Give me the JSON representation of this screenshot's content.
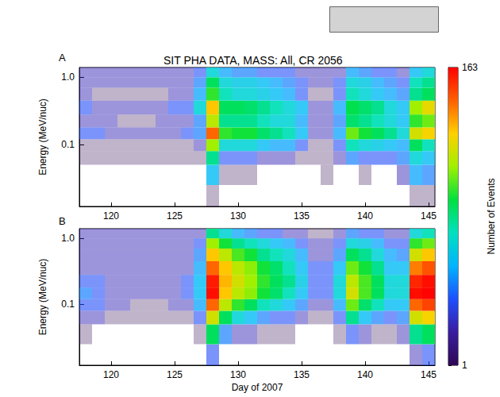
{
  "chart_data": {
    "type": "heatmap",
    "title": "SIT PHA DATA, MASS: All, CR 2056",
    "xlabel": "Day of 2007",
    "ylabel": "Energy (MeV/nuc)",
    "log": "y",
    "grid": false,
    "xlim": [
      117.5,
      145.5
    ],
    "xticks": [
      120,
      125,
      130,
      135,
      140,
      145
    ],
    "ylim": [
      0.012,
      1.4
    ],
    "yticks": [
      0.1,
      {
        "value": 1,
        "label": "1.0"
      }
    ],
    "x_edges": [
      117.5,
      118.5,
      119.5,
      120.5,
      121.5,
      122.5,
      123.5,
      124.5,
      125.5,
      126.5,
      127.5,
      128.5,
      129.5,
      130.5,
      131.5,
      132.5,
      133.5,
      134.5,
      135.5,
      136.5,
      137.5,
      138.5,
      139.5,
      140.5,
      141.5,
      142.5,
      143.5,
      144.5,
      145.5
    ],
    "y_edges": [
      0.012,
      0.025,
      0.05,
      0.08,
      0.12,
      0.18,
      0.28,
      0.45,
      0.7,
      1.0,
      1.4
    ],
    "panels": [
      {
        "label": "A",
        "cells": [
          [
            0,
            0,
            0,
            0,
            0,
            0,
            0,
            0,
            0,
            0,
            1,
            0,
            0,
            0,
            0,
            0,
            0,
            0,
            0,
            0,
            0,
            0,
            0,
            0,
            0,
            0,
            1,
            1
          ],
          [
            0,
            0,
            0,
            0,
            0,
            0,
            0,
            0,
            0,
            0,
            6,
            1,
            1,
            1,
            0,
            0,
            0,
            0,
            0,
            1,
            0,
            0,
            1,
            0,
            0,
            2,
            5,
            4
          ],
          [
            1,
            1,
            1,
            1,
            1,
            1,
            1,
            1,
            1,
            1,
            12,
            3,
            3,
            3,
            2,
            2,
            2,
            1,
            1,
            1,
            2,
            4,
            3,
            3,
            3,
            4,
            8,
            6
          ],
          [
            1,
            1,
            1,
            1,
            1,
            1,
            1,
            1,
            1,
            2,
            30,
            8,
            8,
            8,
            6,
            5,
            5,
            3,
            1,
            1,
            3,
            10,
            8,
            7,
            6,
            5,
            15,
            10
          ],
          [
            3,
            3,
            2,
            2,
            2,
            2,
            2,
            2,
            3,
            4,
            90,
            20,
            18,
            18,
            14,
            12,
            10,
            6,
            2,
            2,
            5,
            25,
            18,
            15,
            12,
            8,
            40,
            50
          ],
          [
            2,
            2,
            2,
            1,
            1,
            1,
            2,
            2,
            2,
            4,
            35,
            12,
            12,
            12,
            10,
            8,
            8,
            5,
            2,
            2,
            4,
            14,
            12,
            10,
            8,
            6,
            20,
            25
          ],
          [
            3,
            2,
            2,
            2,
            2,
            2,
            2,
            3,
            3,
            8,
            55,
            15,
            15,
            14,
            12,
            10,
            8,
            6,
            2,
            2,
            5,
            16,
            14,
            12,
            8,
            6,
            30,
            45
          ],
          [
            2,
            1,
            1,
            1,
            1,
            1,
            1,
            2,
            2,
            5,
            20,
            10,
            8,
            8,
            7,
            6,
            5,
            3,
            1,
            1,
            3,
            10,
            8,
            6,
            5,
            4,
            12,
            15
          ],
          [
            2,
            2,
            2,
            2,
            2,
            2,
            2,
            2,
            2,
            4,
            15,
            8,
            7,
            7,
            6,
            5,
            4,
            3,
            2,
            2,
            3,
            8,
            7,
            5,
            4,
            3,
            10,
            12
          ],
          [
            2,
            2,
            2,
            2,
            2,
            2,
            2,
            2,
            2,
            3,
            8,
            5,
            4,
            4,
            3,
            3,
            3,
            2,
            2,
            2,
            2,
            5,
            4,
            3,
            3,
            2,
            6,
            8
          ]
        ]
      },
      {
        "label": "B",
        "cells": [
          [
            0,
            0,
            0,
            0,
            0,
            0,
            0,
            0,
            0,
            0,
            3,
            0,
            0,
            0,
            0,
            0,
            0,
            0,
            0,
            0,
            0,
            0,
            0,
            0,
            0,
            0,
            2,
            3
          ],
          [
            1,
            0,
            0,
            0,
            0,
            0,
            0,
            0,
            0,
            1,
            15,
            4,
            2,
            2,
            1,
            1,
            1,
            0,
            0,
            0,
            1,
            3,
            2,
            1,
            1,
            2,
            12,
            15
          ],
          [
            2,
            2,
            1,
            1,
            1,
            1,
            1,
            1,
            1,
            3,
            40,
            15,
            8,
            6,
            4,
            3,
            3,
            2,
            1,
            1,
            3,
            12,
            6,
            4,
            3,
            4,
            40,
            50
          ],
          [
            3,
            3,
            2,
            2,
            1,
            1,
            1,
            2,
            2,
            5,
            90,
            35,
            20,
            15,
            10,
            8,
            6,
            4,
            2,
            2,
            5,
            25,
            14,
            10,
            6,
            6,
            90,
            110
          ],
          [
            4,
            3,
            2,
            2,
            2,
            2,
            2,
            2,
            3,
            6,
            150,
            55,
            35,
            28,
            18,
            14,
            10,
            6,
            3,
            3,
            8,
            40,
            22,
            15,
            8,
            8,
            150,
            160
          ],
          [
            3,
            3,
            2,
            2,
            2,
            2,
            2,
            2,
            3,
            6,
            140,
            60,
            40,
            30,
            20,
            15,
            12,
            7,
            3,
            3,
            8,
            35,
            22,
            15,
            8,
            8,
            130,
            150
          ],
          [
            2,
            2,
            2,
            2,
            2,
            2,
            2,
            2,
            2,
            5,
            90,
            55,
            35,
            28,
            18,
            14,
            10,
            6,
            3,
            3,
            6,
            25,
            18,
            12,
            6,
            6,
            80,
            100
          ],
          [
            2,
            2,
            2,
            2,
            2,
            2,
            2,
            2,
            2,
            4,
            55,
            35,
            22,
            18,
            12,
            10,
            8,
            5,
            2,
            2,
            4,
            15,
            12,
            8,
            5,
            4,
            40,
            55
          ],
          [
            2,
            2,
            2,
            2,
            2,
            2,
            2,
            2,
            2,
            3,
            30,
            18,
            12,
            10,
            8,
            6,
            5,
            3,
            2,
            2,
            3,
            8,
            7,
            5,
            3,
            3,
            20,
            25
          ],
          [
            2,
            2,
            2,
            2,
            2,
            2,
            2,
            2,
            2,
            2,
            12,
            8,
            5,
            4,
            3,
            3,
            2,
            2,
            1,
            1,
            2,
            4,
            3,
            3,
            2,
            2,
            8,
            10
          ]
        ]
      }
    ],
    "colorbar": {
      "label": "Number of Events",
      "range": [
        1,
        163
      ],
      "ticks": [
        1,
        163
      ],
      "log": true,
      "colors": [
        "#2e0854",
        "#3b1ca0",
        "#1f4fff",
        "#00b4ff",
        "#00e0c0",
        "#00e040",
        "#a0f000",
        "#ffd000",
        "#ff6000",
        "#ff0000"
      ]
    }
  }
}
